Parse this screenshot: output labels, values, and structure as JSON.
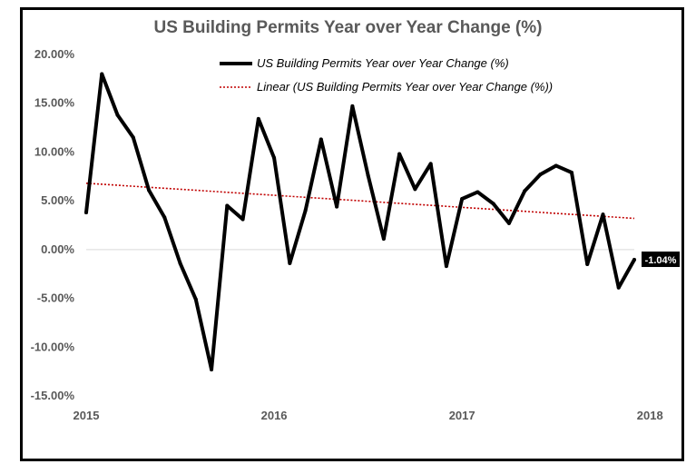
{
  "chart_data": {
    "type": "line",
    "title": "US Building Permits Year over Year Change (%)",
    "xlabel": "",
    "ylabel": "",
    "ylim": [
      -15,
      20
    ],
    "y_ticks": [
      {
        "value": 20,
        "label": "20.00%"
      },
      {
        "value": 15,
        "label": "15.00%"
      },
      {
        "value": 10,
        "label": "10.00%"
      },
      {
        "value": 5,
        "label": "5.00%"
      },
      {
        "value": 0,
        "label": "0.00%"
      },
      {
        "value": -5,
        "label": "-5.00%"
      },
      {
        "value": -10,
        "label": "-10.00%"
      },
      {
        "value": -15,
        "label": "-15.00%"
      }
    ],
    "x_ticks": [
      {
        "index": 0,
        "label": "2015"
      },
      {
        "index": 12,
        "label": "2016"
      },
      {
        "index": 24,
        "label": "2017"
      },
      {
        "index": 36,
        "label": "2018"
      }
    ],
    "series": [
      {
        "name": "US Building Permits Year over Year Change (%)",
        "color": "#000000",
        "values": [
          3.8,
          18.0,
          13.8,
          11.5,
          6.1,
          3.3,
          -1.4,
          -5.1,
          -12.3,
          4.5,
          3.1,
          13.4,
          9.4,
          -1.4,
          4.0,
          11.3,
          4.4,
          14.7,
          7.6,
          1.1,
          9.8,
          6.2,
          8.8,
          -1.7,
          5.2,
          5.9,
          4.7,
          2.7,
          6.0,
          7.7,
          8.6,
          7.9,
          -1.5,
          3.6,
          -3.9,
          -1.04
        ]
      }
    ],
    "trendline": {
      "name": "Linear (US Building Permits Year over Year Change (%))",
      "color": "#c00000",
      "start": 6.8,
      "end": 3.2
    },
    "data_label": {
      "text": "-1.04%",
      "index": 35
    },
    "legend": "top-center"
  }
}
